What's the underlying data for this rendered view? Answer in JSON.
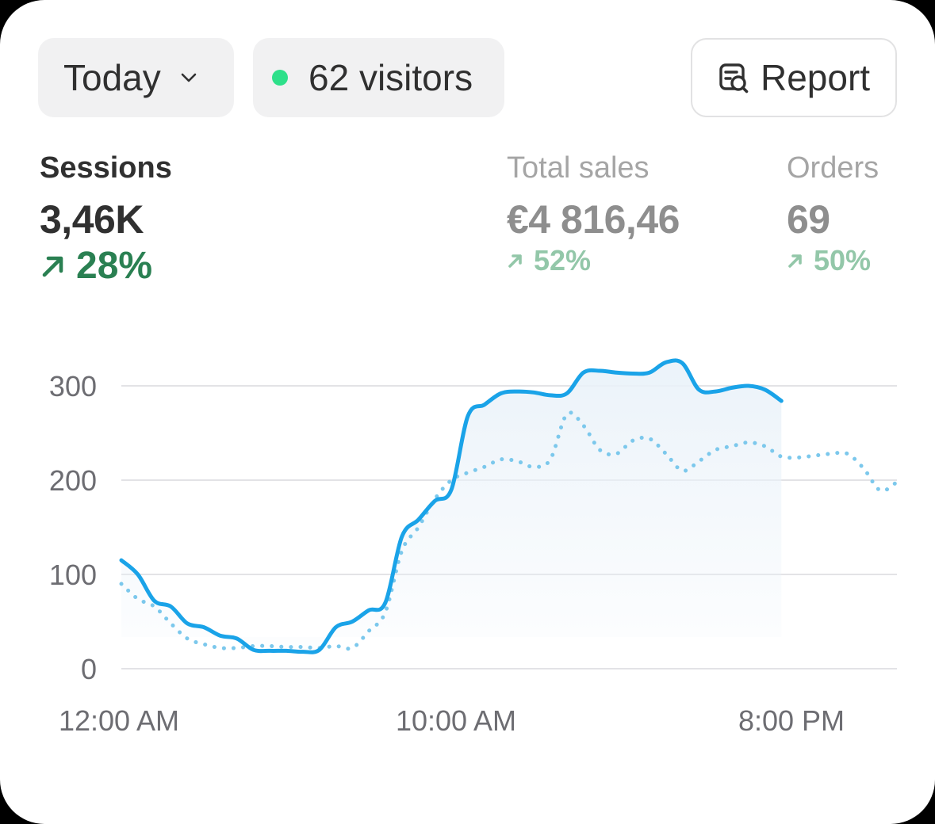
{
  "toolbar": {
    "date_range": "Today",
    "visitors": "62 visitors",
    "report_label": "Report"
  },
  "metrics": {
    "sessions": {
      "label": "Sessions",
      "value": "3,46K",
      "change": "28%"
    },
    "total_sales": {
      "label": "Total sales",
      "value": "€4 816,46",
      "change": "52%"
    },
    "orders": {
      "label": "Orders",
      "value": "69",
      "change": "50%"
    }
  },
  "colors": {
    "current_line": "#1aa3e8",
    "comparison_line": "#7cc8ec",
    "positive": "#2a8052",
    "live_dot": "#2ee08a"
  },
  "chart_data": {
    "type": "line",
    "title": "",
    "xlabel": "",
    "ylabel": "",
    "ylim": [
      0,
      300
    ],
    "yticks": [
      "300",
      "200",
      "100",
      "0"
    ],
    "xticks": [
      "12:00 AM",
      "10:00 AM",
      "8:00 PM"
    ],
    "x": [
      0,
      0.5,
      1,
      1.5,
      2,
      2.5,
      3,
      3.5,
      4,
      4.5,
      5,
      5.5,
      6,
      6.5,
      7,
      7.5,
      8,
      8.5,
      9,
      9.5,
      10,
      10.5,
      11,
      11.5,
      12,
      12.5,
      13,
      13.5,
      14,
      14.5,
      15,
      15.5,
      16,
      16.5,
      17,
      17.5,
      18,
      18.5,
      19,
      19.5,
      20,
      20.5,
      21,
      21.5,
      22,
      22.5,
      23,
      23.5
    ],
    "grid": true,
    "legend": "none",
    "series": [
      {
        "style": "solid",
        "values": [
          115,
          100,
          72,
          66,
          48,
          44,
          35,
          32,
          20,
          19,
          19,
          18,
          20,
          44,
          50,
          62,
          70,
          140,
          158,
          178,
          190,
          268,
          280,
          292,
          294,
          293,
          290,
          292,
          314,
          316,
          314,
          313,
          314,
          325,
          324,
          296,
          294,
          298,
          300,
          296,
          284,
          null,
          null,
          null,
          null,
          null,
          null,
          null
        ]
      },
      {
        "style": "dotted",
        "values": [
          90,
          74,
          66,
          48,
          32,
          26,
          22,
          22,
          24,
          24,
          23,
          23,
          22,
          24,
          22,
          40,
          60,
          125,
          150,
          180,
          200,
          208,
          214,
          222,
          220,
          214,
          222,
          270,
          258,
          232,
          228,
          242,
          244,
          228,
          210,
          220,
          232,
          236,
          240,
          236,
          225,
          224,
          226,
          228,
          228,
          212,
          189,
          198
        ]
      }
    ]
  }
}
